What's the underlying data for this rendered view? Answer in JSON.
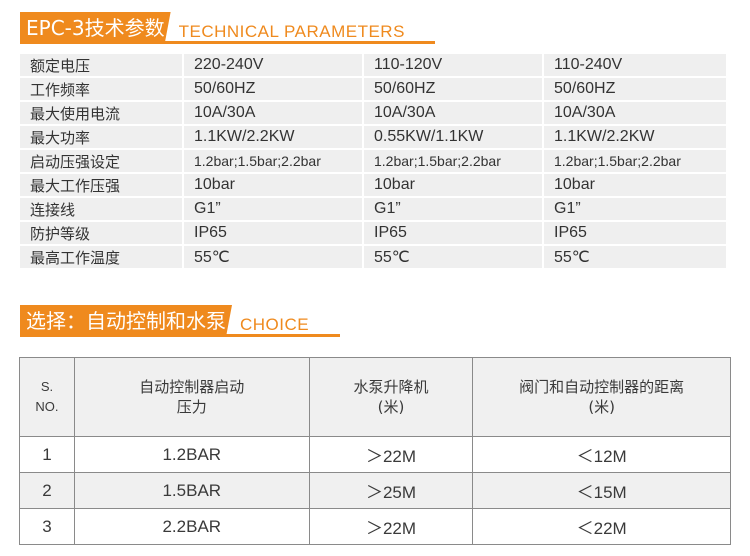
{
  "colors": {
    "accent": "#ef8a1e",
    "row_bg": "#efefef"
  },
  "header1": {
    "tag": "EPC-3技术参数",
    "sub": "TECHNICAL PARAMETERS"
  },
  "spec": {
    "rows": [
      {
        "label": "额定电压",
        "values": [
          "220-240V",
          "110-120V",
          "110-240V"
        ]
      },
      {
        "label": "工作频率",
        "values": [
          "50/60HZ",
          "50/60HZ",
          "50/60HZ"
        ]
      },
      {
        "label": "最大使用电流",
        "values": [
          "10A/30A",
          "10A/30A",
          "10A/30A"
        ]
      },
      {
        "label": "最大功率",
        "values": [
          "1.1KW/2.2KW",
          "0.55KW/1.1KW",
          "1.1KW/2.2KW"
        ]
      },
      {
        "label": "启动压强设定",
        "values": [
          "1.2bar;1.5bar;2.2bar",
          "1.2bar;1.5bar;2.2bar",
          "1.2bar;1.5bar;2.2bar"
        ]
      },
      {
        "label": "最大工作压强",
        "values": [
          "10bar",
          "10bar",
          "10bar"
        ]
      },
      {
        "label": "连接线",
        "values": [
          "G1”",
          "G1”",
          "G1”"
        ]
      },
      {
        "label": "防护等级",
        "values": [
          "IP65",
          "IP65",
          "IP65"
        ]
      },
      {
        "label": "最高工作温度",
        "values": [
          "55℃",
          "55℃",
          "55℃"
        ]
      }
    ]
  },
  "header2": {
    "tag": "选择：自动控制和水泵",
    "sub": "CHOICE"
  },
  "choice": {
    "headers": {
      "sno_line1": "S.",
      "sno_line2": "NO.",
      "col1_line1": "自动控制器启动",
      "col1_line2": "压力",
      "col2_line1": "水泵升降机",
      "col2_line2": "(米)",
      "col3_line1": "阀门和自动控制器的距离",
      "col3_line2": "(米)"
    },
    "rows": [
      {
        "no": "1",
        "pressure": "1.2BAR",
        "lift": "＞22M",
        "distance": "＜12M"
      },
      {
        "no": "2",
        "pressure": "1.5BAR",
        "lift": "＞25M",
        "distance": "＜15M"
      },
      {
        "no": "3",
        "pressure": "2.2BAR",
        "lift": "＞22M",
        "distance": "＜22M"
      }
    ]
  }
}
